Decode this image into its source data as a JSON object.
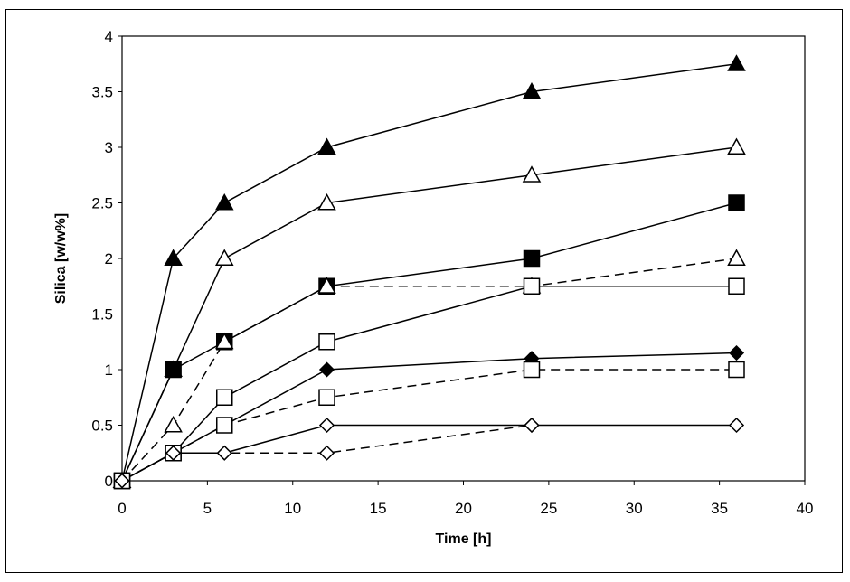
{
  "chart_data": {
    "type": "line",
    "title": "",
    "xlabel": "Time [h]",
    "ylabel": "Silica [w/w%]",
    "xlim": [
      0,
      40
    ],
    "ylim": [
      0,
      4
    ],
    "xticks": [
      0,
      5,
      10,
      15,
      20,
      25,
      30,
      35,
      40
    ],
    "yticks": [
      0,
      0.5,
      1,
      1.5,
      2,
      2.5,
      3,
      3.5,
      4
    ],
    "grid": false,
    "legend": "none",
    "series": [
      {
        "marker": "triangle",
        "fill": "#000000",
        "dash": false,
        "points": [
          [
            0,
            0
          ],
          [
            3,
            2
          ],
          [
            6,
            2.5
          ],
          [
            12,
            3
          ],
          [
            24,
            3.5
          ],
          [
            36,
            3.75
          ]
        ]
      },
      {
        "marker": "triangle",
        "fill": "#ffffff",
        "dash": false,
        "points": [
          [
            0,
            0
          ],
          [
            3,
            1
          ],
          [
            6,
            2
          ],
          [
            12,
            2.5
          ],
          [
            24,
            2.75
          ],
          [
            36,
            3
          ]
        ]
      },
      {
        "marker": "square",
        "fill": "#000000",
        "dash": false,
        "points": [
          [
            0,
            0
          ],
          [
            3,
            1
          ],
          [
            6,
            1.25
          ],
          [
            12,
            1.75
          ],
          [
            24,
            2
          ],
          [
            36,
            2.5
          ]
        ]
      },
      {
        "marker": "triangle",
        "fill": "#ffffff",
        "dash": true,
        "points": [
          [
            0,
            0
          ],
          [
            3,
            0.5
          ],
          [
            6,
            1.25
          ],
          [
            12,
            1.75
          ],
          [
            24,
            1.75
          ],
          [
            36,
            2
          ]
        ]
      },
      {
        "marker": "square",
        "fill": "#ffffff",
        "dash": false,
        "points": [
          [
            0,
            0
          ],
          [
            3,
            0.25
          ],
          [
            6,
            0.75
          ],
          [
            12,
            1.25
          ],
          [
            24,
            1.75
          ],
          [
            36,
            1.75
          ]
        ]
      },
      {
        "marker": "diamond",
        "fill": "#000000",
        "dash": false,
        "points": [
          [
            0,
            0
          ],
          [
            3,
            0.25
          ],
          [
            6,
            0.5
          ],
          [
            12,
            1
          ],
          [
            24,
            1.1
          ],
          [
            36,
            1.15
          ]
        ]
      },
      {
        "marker": "square",
        "fill": "#ffffff",
        "dash": true,
        "points": [
          [
            0,
            0
          ],
          [
            3,
            0.25
          ],
          [
            6,
            0.5
          ],
          [
            12,
            0.75
          ],
          [
            24,
            1
          ],
          [
            36,
            1
          ]
        ]
      },
      {
        "marker": "diamond",
        "fill": "#ffffff",
        "dash": false,
        "points": [
          [
            0,
            0
          ],
          [
            3,
            0.25
          ],
          [
            6,
            0.25
          ],
          [
            12,
            0.5
          ],
          [
            24,
            0.5
          ],
          [
            36,
            0.5
          ]
        ]
      },
      {
        "marker": "diamond",
        "fill": "#ffffff",
        "dash": true,
        "points": [
          [
            0,
            0
          ],
          [
            3,
            0.25
          ],
          [
            6,
            0.25
          ],
          [
            12,
            0.25
          ],
          [
            24,
            0.5
          ]
        ]
      }
    ]
  }
}
